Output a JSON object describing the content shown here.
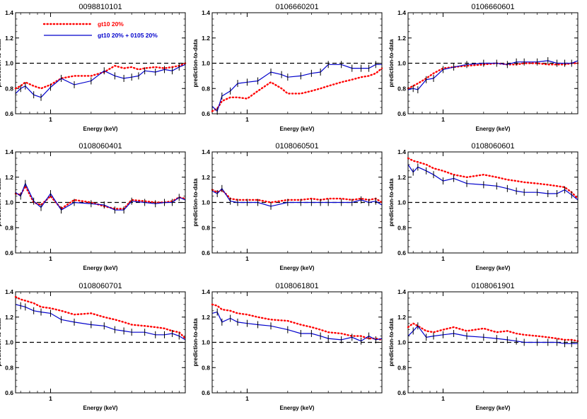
{
  "legend": {
    "red": "gt10 20%",
    "blue": "gt10 20% + 0105 20%",
    "red_color": "#ff0000",
    "blue_color": "#0000cc"
  },
  "chart_data": [
    {
      "type": "line",
      "title": "0098810101",
      "xlabel": "Energy (keV)",
      "ylabel": "prediction-to-data",
      "xscale": "log",
      "xlim": [
        0.55,
        10
      ],
      "ylim": [
        0.6,
        1.4
      ],
      "yticks": [
        "0.6",
        "0.8",
        "1.0",
        "1.2",
        "1.4"
      ],
      "xticks": [
        "1"
      ],
      "reference_line": 1.0,
      "legend_position": "top-left",
      "red": {
        "x": [
          0.55,
          0.6,
          0.65,
          0.75,
          0.85,
          1.0,
          1.2,
          1.5,
          2.0,
          2.5,
          3.0,
          3.5,
          4.0,
          4.5,
          5,
          6,
          7,
          8,
          9,
          10
        ],
        "y": [
          0.8,
          0.82,
          0.85,
          0.82,
          0.8,
          0.83,
          0.88,
          0.9,
          0.9,
          0.93,
          0.98,
          0.96,
          0.97,
          0.95,
          0.96,
          0.97,
          0.96,
          0.97,
          0.98,
          1.0
        ]
      },
      "blue": {
        "x": [
          0.55,
          0.6,
          0.65,
          0.75,
          0.85,
          1.0,
          1.2,
          1.5,
          2.0,
          2.5,
          3.0,
          3.5,
          4.0,
          4.5,
          5,
          6,
          7,
          8,
          9,
          10
        ],
        "y": [
          0.76,
          0.8,
          0.82,
          0.75,
          0.73,
          0.81,
          0.88,
          0.83,
          0.86,
          0.94,
          0.9,
          0.88,
          0.89,
          0.9,
          0.94,
          0.93,
          0.95,
          0.94,
          0.97,
          0.99
        ]
      }
    },
    {
      "type": "line",
      "title": "0106660201",
      "xlabel": "Energy (keV)",
      "ylabel": "prediction-to-data",
      "xscale": "log",
      "xlim": [
        0.55,
        10
      ],
      "ylim": [
        0.6,
        1.4
      ],
      "yticks": [
        "0.6",
        "0.8",
        "1.0",
        "1.2",
        "1.4"
      ],
      "xticks": [
        "1"
      ],
      "reference_line": 1.0,
      "red": {
        "x": [
          0.55,
          0.6,
          0.65,
          0.75,
          0.85,
          1.0,
          1.2,
          1.5,
          1.8,
          2.0,
          2.5,
          3.0,
          3.5,
          4.0,
          5,
          6,
          7,
          8,
          9,
          10
        ],
        "y": [
          0.62,
          0.64,
          0.7,
          0.73,
          0.73,
          0.72,
          0.78,
          0.85,
          0.8,
          0.76,
          0.76,
          0.78,
          0.8,
          0.82,
          0.85,
          0.87,
          0.89,
          0.9,
          0.92,
          0.96
        ]
      },
      "blue": {
        "x": [
          0.55,
          0.6,
          0.65,
          0.75,
          0.85,
          1.0,
          1.2,
          1.5,
          1.8,
          2.0,
          2.5,
          3.0,
          3.5,
          4.0,
          5,
          6,
          7,
          8,
          9,
          10
        ],
        "y": [
          0.66,
          0.62,
          0.74,
          0.78,
          0.84,
          0.85,
          0.86,
          0.93,
          0.91,
          0.89,
          0.9,
          0.92,
          0.93,
          0.99,
          0.99,
          0.96,
          0.96,
          0.96,
          0.99,
          0.99
        ]
      }
    },
    {
      "type": "line",
      "title": "0106660601",
      "xlabel": "Energy (keV)",
      "ylabel": "prediction-to-data",
      "xscale": "log",
      "xlim": [
        0.55,
        10
      ],
      "ylim": [
        0.6,
        1.4
      ],
      "yticks": [
        "0.6",
        "0.8",
        "1.0",
        "1.2",
        "1.4"
      ],
      "xticks": [
        "1"
      ],
      "reference_line": 1.0,
      "red": {
        "x": [
          0.55,
          0.6,
          0.65,
          0.75,
          0.85,
          1.0,
          1.2,
          1.5,
          2.0,
          2.5,
          3.0,
          3.5,
          4.0,
          5,
          6,
          7,
          8,
          9,
          10
        ],
        "y": [
          0.8,
          0.82,
          0.84,
          0.88,
          0.92,
          0.96,
          0.97,
          0.98,
          0.99,
          1.0,
          0.99,
          0.99,
          1.0,
          1.0,
          0.99,
          0.99,
          0.99,
          1.0,
          1.0
        ]
      },
      "blue": {
        "x": [
          0.55,
          0.6,
          0.65,
          0.75,
          0.85,
          1.0,
          1.2,
          1.5,
          2.0,
          2.5,
          3.0,
          3.5,
          4.0,
          5,
          6,
          7,
          8,
          9,
          10
        ],
        "y": [
          0.79,
          0.8,
          0.79,
          0.87,
          0.88,
          0.95,
          0.97,
          0.99,
          1.0,
          1.0,
          0.99,
          1.01,
          1.01,
          1.01,
          1.02,
          1.0,
          1.0,
          1.0,
          1.02
        ]
      }
    },
    {
      "type": "line",
      "title": "0108060401",
      "xlabel": "Energy (keV)",
      "ylabel": "prediction-to-data",
      "xscale": "log",
      "xlim": [
        0.55,
        10
      ],
      "ylim": [
        0.6,
        1.4
      ],
      "yticks": [
        "0.6",
        "0.8",
        "1.0",
        "1.2",
        "1.4"
      ],
      "xticks": [
        "1"
      ],
      "reference_line": 1.0,
      "red": {
        "x": [
          0.55,
          0.6,
          0.65,
          0.75,
          0.85,
          1.0,
          1.2,
          1.5,
          2.0,
          2.5,
          3.0,
          3.5,
          4.0,
          5,
          6,
          7,
          8,
          9,
          10
        ],
        "y": [
          1.07,
          1.06,
          1.13,
          1.0,
          0.98,
          1.05,
          0.95,
          1.02,
          1.0,
          0.97,
          0.95,
          0.95,
          1.02,
          1.01,
          1.0,
          1.0,
          1.01,
          1.04,
          1.03
        ]
      },
      "blue": {
        "x": [
          0.55,
          0.6,
          0.65,
          0.75,
          0.85,
          1.0,
          1.2,
          1.5,
          2.0,
          2.5,
          3.0,
          3.5,
          4.0,
          5,
          6,
          7,
          8,
          9,
          10
        ],
        "y": [
          1.08,
          1.05,
          1.15,
          1.01,
          0.96,
          1.07,
          0.94,
          1.0,
          0.99,
          0.98,
          0.94,
          0.94,
          1.01,
          1.0,
          0.99,
          1.0,
          1.0,
          1.04,
          1.02
        ]
      }
    },
    {
      "type": "line",
      "title": "0108060501",
      "xlabel": "Energy (keV)",
      "ylabel": "prediction-to-data",
      "xscale": "log",
      "xlim": [
        0.55,
        10
      ],
      "ylim": [
        0.6,
        1.4
      ],
      "yticks": [
        "0.6",
        "0.8",
        "1.0",
        "1.2",
        "1.4"
      ],
      "xticks": [
        "1"
      ],
      "reference_line": 1.0,
      "red": {
        "x": [
          0.55,
          0.6,
          0.65,
          0.75,
          0.85,
          1.0,
          1.2,
          1.5,
          2.0,
          2.5,
          3.0,
          3.5,
          4.0,
          5,
          6,
          7,
          8,
          9,
          10
        ],
        "y": [
          1.1,
          1.08,
          1.1,
          1.03,
          1.02,
          1.02,
          1.02,
          1.0,
          1.02,
          1.02,
          1.03,
          1.02,
          1.03,
          1.03,
          1.02,
          1.03,
          1.02,
          1.03,
          1.0
        ]
      },
      "blue": {
        "x": [
          0.55,
          0.6,
          0.65,
          0.75,
          0.85,
          1.0,
          1.2,
          1.5,
          2.0,
          2.5,
          3.0,
          3.5,
          4.0,
          5,
          6,
          7,
          8,
          9,
          10
        ],
        "y": [
          1.09,
          1.07,
          1.11,
          1.01,
          1.0,
          1.0,
          1.0,
          0.97,
          1.0,
          1.0,
          1.0,
          1.0,
          1.0,
          1.0,
          1.0,
          1.02,
          1.0,
          1.01,
          0.98
        ]
      }
    },
    {
      "type": "line",
      "title": "0108060601",
      "xlabel": "Energy (keV)",
      "ylabel": "prediction-to-data",
      "xscale": "log",
      "xlim": [
        0.55,
        10
      ],
      "ylim": [
        0.6,
        1.4
      ],
      "yticks": [
        "0.6",
        "0.8",
        "1.0",
        "1.2",
        "1.4"
      ],
      "xticks": [
        "1"
      ],
      "reference_line": 1.0,
      "red": {
        "x": [
          0.55,
          0.6,
          0.65,
          0.75,
          0.85,
          1.0,
          1.2,
          1.5,
          2.0,
          2.5,
          3.0,
          3.5,
          4.0,
          5,
          6,
          7,
          8,
          9,
          10
        ],
        "y": [
          1.35,
          1.33,
          1.32,
          1.3,
          1.27,
          1.25,
          1.22,
          1.2,
          1.22,
          1.2,
          1.18,
          1.17,
          1.16,
          1.15,
          1.14,
          1.13,
          1.12,
          1.08,
          1.03
        ]
      },
      "blue": {
        "x": [
          0.55,
          0.6,
          0.65,
          0.75,
          0.85,
          1.0,
          1.2,
          1.5,
          2.0,
          2.5,
          3.0,
          3.5,
          4.0,
          5,
          6,
          7,
          8,
          9,
          10
        ],
        "y": [
          1.3,
          1.24,
          1.28,
          1.25,
          1.22,
          1.17,
          1.19,
          1.15,
          1.14,
          1.13,
          1.11,
          1.09,
          1.08,
          1.08,
          1.07,
          1.07,
          1.1,
          1.06,
          1.02
        ]
      }
    },
    {
      "type": "line",
      "title": "0108060701",
      "xlabel": "Energy (keV)",
      "ylabel": "prediction-to-data",
      "xscale": "log",
      "xlim": [
        0.55,
        10
      ],
      "ylim": [
        0.6,
        1.4
      ],
      "yticks": [
        "0.6",
        "0.8",
        "1.0",
        "1.2",
        "1.4"
      ],
      "xticks": [
        "1"
      ],
      "reference_line": 1.0,
      "red": {
        "x": [
          0.55,
          0.6,
          0.65,
          0.75,
          0.85,
          1.0,
          1.2,
          1.5,
          2.0,
          2.5,
          3.0,
          3.5,
          4.0,
          5,
          6,
          7,
          8,
          9,
          10
        ],
        "y": [
          1.36,
          1.34,
          1.33,
          1.31,
          1.28,
          1.27,
          1.25,
          1.22,
          1.23,
          1.2,
          1.18,
          1.16,
          1.14,
          1.13,
          1.12,
          1.11,
          1.09,
          1.08,
          1.03
        ]
      },
      "blue": {
        "x": [
          0.55,
          0.6,
          0.65,
          0.75,
          0.85,
          1.0,
          1.2,
          1.5,
          2.0,
          2.5,
          3.0,
          3.5,
          4.0,
          5,
          6,
          7,
          8,
          9,
          10
        ],
        "y": [
          1.3,
          1.29,
          1.28,
          1.25,
          1.24,
          1.23,
          1.18,
          1.16,
          1.14,
          1.13,
          1.1,
          1.09,
          1.08,
          1.08,
          1.06,
          1.06,
          1.07,
          1.05,
          1.02
        ]
      }
    },
    {
      "type": "line",
      "title": "0108061801",
      "xlabel": "Energy (keV)",
      "ylabel": "prediction-to-data",
      "xscale": "log",
      "xlim": [
        0.55,
        10
      ],
      "ylim": [
        0.6,
        1.4
      ],
      "yticks": [
        "0.6",
        "0.8",
        "1.0",
        "1.2",
        "1.4"
      ],
      "xticks": [
        "1"
      ],
      "reference_line": 1.0,
      "red": {
        "x": [
          0.55,
          0.6,
          0.65,
          0.75,
          0.85,
          1.0,
          1.2,
          1.5,
          2.0,
          2.5,
          3.0,
          3.5,
          4.0,
          5,
          6,
          7,
          8,
          9,
          10
        ],
        "y": [
          1.3,
          1.29,
          1.26,
          1.25,
          1.23,
          1.22,
          1.2,
          1.18,
          1.17,
          1.14,
          1.12,
          1.1,
          1.08,
          1.07,
          1.05,
          1.05,
          1.03,
          1.03,
          1.02
        ]
      },
      "blue": {
        "x": [
          0.55,
          0.6,
          0.65,
          0.75,
          0.85,
          1.0,
          1.2,
          1.5,
          2.0,
          2.5,
          3.0,
          3.5,
          4.0,
          5,
          6,
          7,
          8,
          9,
          10
        ],
        "y": [
          1.23,
          1.24,
          1.16,
          1.19,
          1.16,
          1.15,
          1.14,
          1.13,
          1.1,
          1.07,
          1.07,
          1.05,
          1.03,
          1.02,
          1.04,
          1.01,
          1.05,
          1.02,
          1.03
        ]
      }
    },
    {
      "type": "line",
      "title": "0108061901",
      "xlabel": "Energy (keV)",
      "ylabel": "prediction-to-data",
      "xscale": "log",
      "xlim": [
        0.55,
        10
      ],
      "ylim": [
        0.6,
        1.4
      ],
      "yticks": [
        "0.6",
        "0.8",
        "1.0",
        "1.2",
        "1.4"
      ],
      "xticks": [
        "1"
      ],
      "reference_line": 1.0,
      "red": {
        "x": [
          0.55,
          0.6,
          0.65,
          0.75,
          0.85,
          1.0,
          1.2,
          1.5,
          2.0,
          2.5,
          3.0,
          3.5,
          4.0,
          5,
          6,
          7,
          8,
          9,
          10
        ],
        "y": [
          1.12,
          1.15,
          1.13,
          1.09,
          1.08,
          1.1,
          1.12,
          1.09,
          1.11,
          1.08,
          1.09,
          1.07,
          1.06,
          1.05,
          1.04,
          1.03,
          1.02,
          1.02,
          1.01
        ]
      },
      "blue": {
        "x": [
          0.55,
          0.6,
          0.65,
          0.75,
          0.85,
          1.0,
          1.2,
          1.5,
          2.0,
          2.5,
          3.0,
          3.5,
          4.0,
          5,
          6,
          7,
          8,
          9,
          10
        ],
        "y": [
          1.05,
          1.09,
          1.13,
          1.04,
          1.05,
          1.06,
          1.07,
          1.05,
          1.04,
          1.03,
          1.02,
          1.01,
          1.0,
          1.0,
          1.0,
          1.0,
          0.99,
          0.99,
          0.99
        ]
      }
    }
  ]
}
